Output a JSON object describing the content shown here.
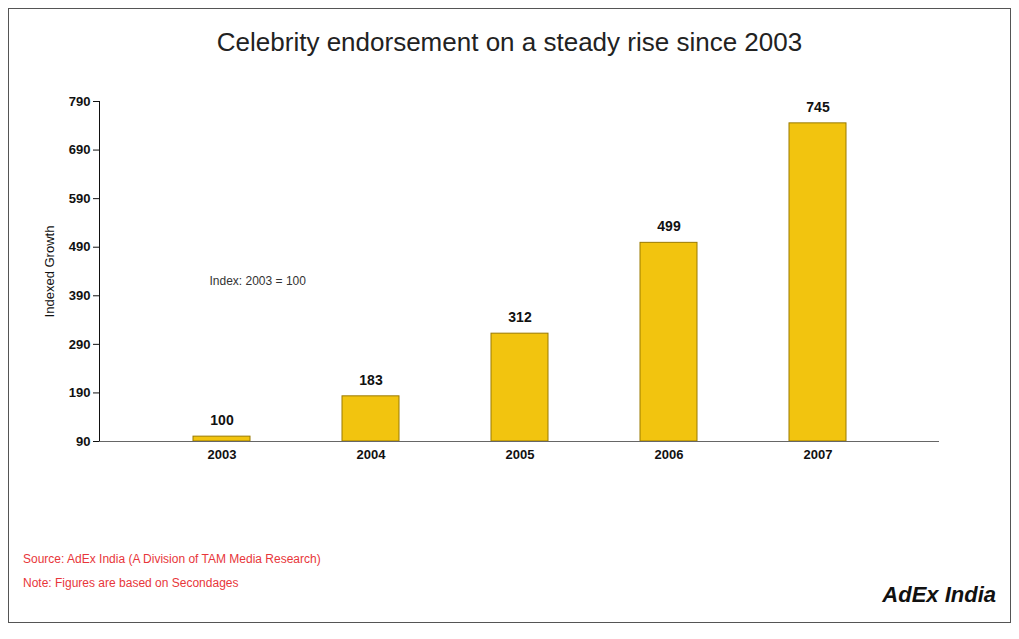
{
  "chart_data": {
    "type": "bar",
    "title": "Celebrity endorsement on a steady rise since 2003",
    "categories": [
      "2003",
      "2004",
      "2005",
      "2006",
      "2007"
    ],
    "values": [
      100,
      183,
      312,
      499,
      745
    ],
    "color": "#f2c40f",
    "y_label": "Indexed Growth",
    "ylim": [
      90,
      790
    ],
    "yticks": [
      90,
      190,
      290,
      390,
      490,
      590,
      690,
      790
    ],
    "data_labels": true,
    "grid": false,
    "annotation": "Index: 2003 = 100",
    "source": "Source: AdEx India (A Division of TAM Media Research)",
    "note": "Note: Figures are based on Secondages",
    "logo": "AdEx India"
  }
}
